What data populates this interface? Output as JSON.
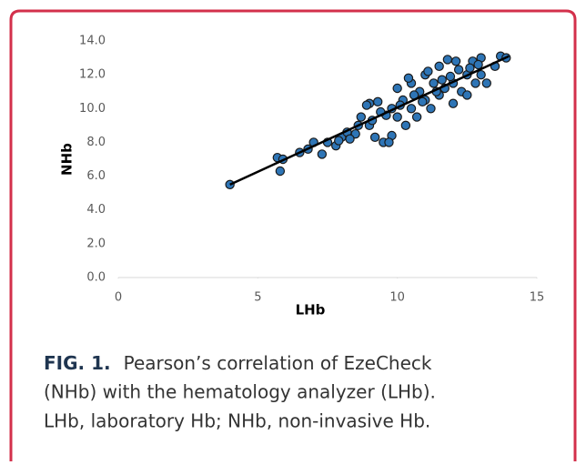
{
  "chart_data": {
    "type": "scatter",
    "xlabel": "LHb",
    "ylabel": "NHb",
    "xlim": [
      0,
      15
    ],
    "xticks": [
      0,
      5,
      10,
      15
    ],
    "ylim": [
      0,
      14
    ],
    "yticks": [
      {
        "value": 0,
        "label": "0.0"
      },
      {
        "value": 2,
        "label": "2.0"
      },
      {
        "value": 4,
        "label": "4.0"
      },
      {
        "value": 6,
        "label": "6.0"
      },
      {
        "value": 8,
        "label": "8.0"
      },
      {
        "value": 10,
        "label": "10.0"
      },
      {
        "value": 12,
        "label": "12.0"
      },
      {
        "value": 14,
        "label": "14.0"
      }
    ],
    "color": "#2e75b6",
    "x": [
      4,
      5.7,
      5.8,
      5.9,
      6.5,
      6.8,
      7,
      7.3,
      7.5,
      7.8,
      8,
      8.2,
      8.5,
      8.7,
      9,
      9,
      9.2,
      9.3,
      9.5,
      9.6,
      9.8,
      9.8,
      10,
      10,
      10.2,
      10.3,
      10.5,
      10.5,
      10.7,
      10.8,
      11,
      11,
      11.2,
      11.3,
      11.5,
      11.5,
      11.7,
      11.8,
      12,
      12,
      12.2,
      12.3,
      12.5,
      12.5,
      12.7,
      12.8,
      13,
      13,
      13.2,
      13.5,
      13.7,
      13.9,
      9.4,
      10.1,
      10.6,
      11.4,
      11.9,
      12.6,
      8.9,
      9.7,
      10.4,
      11.1,
      11.6,
      12.1,
      12.9,
      8.3,
      7.9,
      8.6,
      9.1,
      10.9
    ],
    "y": [
      5.5,
      7.1,
      6.3,
      7.0,
      7.4,
      7.6,
      8.0,
      7.3,
      8.0,
      7.8,
      8.3,
      8.6,
      8.5,
      9.5,
      9.0,
      10.3,
      8.3,
      10.4,
      8.0,
      9.6,
      10.0,
      8.4,
      11.2,
      9.5,
      10.5,
      9.0,
      11.5,
      10.0,
      9.5,
      11.0,
      12.0,
      10.5,
      10.0,
      11.5,
      12.5,
      10.8,
      11.2,
      12.9,
      11.5,
      10.3,
      12.3,
      11.0,
      12.0,
      10.8,
      12.8,
      11.5,
      13.0,
      12.0,
      11.5,
      12.5,
      13.1,
      13.0,
      9.8,
      10.2,
      10.8,
      11.0,
      11.9,
      12.4,
      10.2,
      8.0,
      11.8,
      12.2,
      11.7,
      12.8,
      12.6,
      8.2,
      8.1,
      9.0,
      9.3,
      10.4
    ],
    "trendline": {
      "x": [
        4,
        14
      ],
      "y": [
        5.5,
        13.1
      ]
    }
  },
  "caption": {
    "label": "FIG. 1.",
    "lines": [
      "Pearson’s correlation of EzeCheck",
      "(NHb) with the hematology analyzer (LHb).",
      "LHb, laboratory Hb; NHb, non-invasive Hb."
    ]
  }
}
